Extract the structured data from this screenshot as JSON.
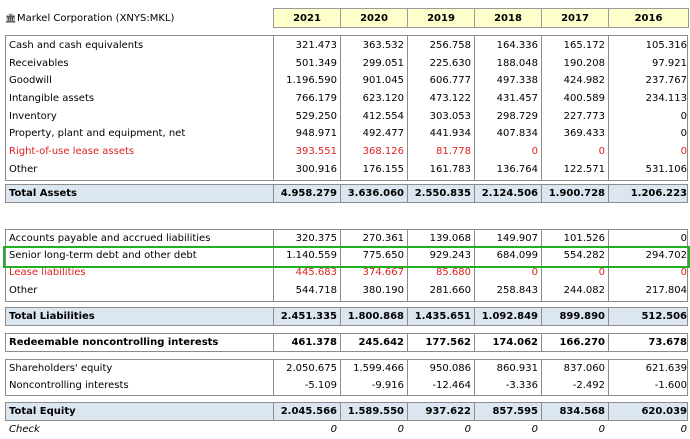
{
  "company": {
    "name": "Markel Corporation (XNYS:MKL)",
    "icon": "bank-icon"
  },
  "years": [
    "2021",
    "2020",
    "2019",
    "2018",
    "2017",
    "2016"
  ],
  "assets": [
    {
      "label": "Cash and cash equivalents",
      "values": [
        "321.473",
        "363.532",
        "256.758",
        "164.336",
        "165.172",
        "105.316"
      ]
    },
    {
      "label": "Receivables",
      "values": [
        "501.349",
        "299.051",
        "225.630",
        "188.048",
        "190.208",
        "97.921"
      ]
    },
    {
      "label": "Goodwill",
      "values": [
        "1.196.590",
        "901.045",
        "606.777",
        "497.338",
        "424.982",
        "237.767"
      ]
    },
    {
      "label": "Intangible assets",
      "values": [
        "766.179",
        "623.120",
        "473.122",
        "431.457",
        "400.589",
        "234.113"
      ]
    },
    {
      "label": "Inventory",
      "values": [
        "529.250",
        "412.554",
        "303.053",
        "298.729",
        "227.773",
        "0"
      ]
    },
    {
      "label": "Property, plant and equipment, net",
      "values": [
        "948.971",
        "492.477",
        "441.934",
        "407.834",
        "369.433",
        "0"
      ]
    },
    {
      "label": "Right-of-use lease assets",
      "values": [
        "393.551",
        "368.126",
        "81.778",
        "0",
        "0",
        "0"
      ]
    },
    {
      "label": "Other",
      "values": [
        "300.916",
        "176.155",
        "161.783",
        "136.764",
        "122.571",
        "531.106"
      ]
    }
  ],
  "total_assets": {
    "label": "Total Assets",
    "values": [
      "4.958.279",
      "3.636.060",
      "2.550.835",
      "2.124.506",
      "1.900.728",
      "1.206.223"
    ]
  },
  "liabilities": [
    {
      "label": "Accounts payable and accrued liabilities",
      "values": [
        "320.375",
        "270.361",
        "139.068",
        "149.907",
        "101.526",
        "0"
      ]
    },
    {
      "label": "Senior long-term debt and other debt",
      "values": [
        "1.140.559",
        "775.650",
        "929.243",
        "684.099",
        "554.282",
        "294.702"
      ]
    },
    {
      "label": "Lease liabilities",
      "values": [
        "445.683",
        "374.667",
        "85.680",
        "0",
        "0",
        "0"
      ]
    },
    {
      "label": "Other",
      "values": [
        "544.718",
        "380.190",
        "281.660",
        "258.843",
        "244.082",
        "217.804"
      ]
    }
  ],
  "total_liabilities": {
    "label": "Total Liabilities",
    "values": [
      "2.451.335",
      "1.800.868",
      "1.435.651",
      "1.092.849",
      "899.890",
      "512.506"
    ]
  },
  "redeemable": {
    "label": "Redeemable noncontrolling interests",
    "values": [
      "461.378",
      "245.642",
      "177.562",
      "174.062",
      "166.270",
      "73.678"
    ]
  },
  "equity": [
    {
      "label": "Shareholders' equity",
      "values": [
        "2.050.675",
        "1.599.466",
        "950.086",
        "860.931",
        "837.060",
        "621.639"
      ]
    },
    {
      "label": "Noncontrolling interests",
      "values": [
        "-5.109",
        "-9.916",
        "-12.464",
        "-3.336",
        "-2.492",
        "-1.600"
      ]
    }
  ],
  "total_equity": {
    "label": "Total Equity",
    "values": [
      "2.045.566",
      "1.589.550",
      "937.622",
      "857.595",
      "834.568",
      "620.039"
    ]
  },
  "check": {
    "label": "Check",
    "values": [
      "0",
      "0",
      "0",
      "0",
      "0",
      "0"
    ]
  },
  "colors": {
    "negative_item": "#e01f1f",
    "header_bg": "#ffffcc",
    "total_bg": "#dce6f1",
    "highlight": "#22b022"
  },
  "red_rows": [
    "Right-of-use lease assets",
    "Lease liabilities"
  ],
  "highlighted_row": "Senior long-term debt and other debt"
}
